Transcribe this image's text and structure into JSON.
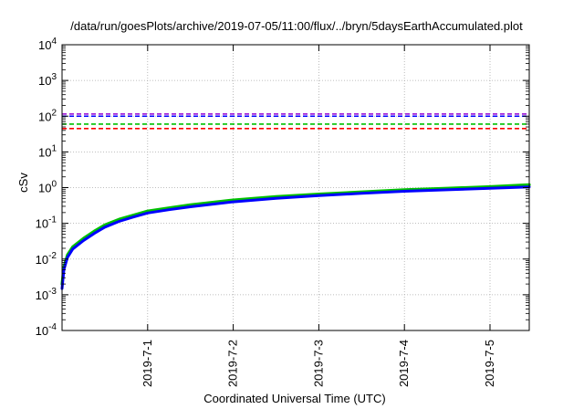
{
  "chart_data": {
    "type": "line",
    "title": "/data/run/goesPlots/archive/2019-07-05/11:00/flux/../bryn/5daysEarthAccumulated.plot",
    "xlabel": "Coordinated Universal Time (UTC)",
    "ylabel": "cSv",
    "y_scale": "log",
    "ylim": [
      0.0001,
      10000
    ],
    "xlim": [
      "2019-06-30T00:00",
      "2019-07-05T11:00"
    ],
    "grid": true,
    "x_ticks": [
      {
        "value": "2019-07-01",
        "label": "2019-7-1"
      },
      {
        "value": "2019-07-02",
        "label": "2019-7-2"
      },
      {
        "value": "2019-07-03",
        "label": "2019-7-3"
      },
      {
        "value": "2019-07-04",
        "label": "2019-7-4"
      },
      {
        "value": "2019-07-05",
        "label": "2019-7-5"
      }
    ],
    "y_ticks": [
      {
        "value": 0.0001,
        "base": "10",
        "exp": "-4"
      },
      {
        "value": 0.001,
        "base": "10",
        "exp": "-3"
      },
      {
        "value": 0.01,
        "base": "10",
        "exp": "-2"
      },
      {
        "value": 0.1,
        "base": "10",
        "exp": "-1"
      },
      {
        "value": 1,
        "base": "10",
        "exp": "0"
      },
      {
        "value": 10,
        "base": "10",
        "exp": "1"
      },
      {
        "value": 100,
        "base": "10",
        "exp": "2"
      },
      {
        "value": 1000,
        "base": "10",
        "exp": "3"
      },
      {
        "value": 10000,
        "base": "10",
        "exp": "4"
      }
    ],
    "thresholds": [
      {
        "value": 115,
        "color": "#9400d3"
      },
      {
        "value": 100,
        "color": "#0000ff"
      },
      {
        "value": 60,
        "color": "#00c000"
      },
      {
        "value": 45,
        "color": "#ff0000"
      }
    ],
    "series": [
      {
        "color": "#00c000",
        "x": [
          "2019-06-30T00:00",
          "2019-06-30T00:30",
          "2019-06-30T01:30",
          "2019-06-30T03:00",
          "2019-06-30T06:00",
          "2019-06-30T09:00",
          "2019-06-30T12:00",
          "2019-06-30T16:00",
          "2019-06-30T20:00",
          "2019-07-01T00:00",
          "2019-07-01T06:00",
          "2019-07-01T12:00",
          "2019-07-02T00:00",
          "2019-07-02T12:00",
          "2019-07-03T00:00",
          "2019-07-03T12:00",
          "2019-07-04T00:00",
          "2019-07-04T12:00",
          "2019-07-05T00:00",
          "2019-07-05T11:00"
        ],
        "y": [
          0.002,
          0.006,
          0.013,
          0.022,
          0.038,
          0.06,
          0.09,
          0.13,
          0.17,
          0.22,
          0.27,
          0.33,
          0.45,
          0.56,
          0.66,
          0.76,
          0.87,
          0.96,
          1.06,
          1.2
        ]
      },
      {
        "color": "#0000ff",
        "x": [
          "2019-06-30T00:00",
          "2019-06-30T00:30",
          "2019-06-30T01:30",
          "2019-06-30T03:00",
          "2019-06-30T06:00",
          "2019-06-30T09:00",
          "2019-06-30T12:00",
          "2019-06-30T16:00",
          "2019-06-30T20:00",
          "2019-07-01T00:00",
          "2019-07-01T06:00",
          "2019-07-01T12:00",
          "2019-07-02T00:00",
          "2019-07-02T12:00",
          "2019-07-03T00:00",
          "2019-07-03T12:00",
          "2019-07-04T00:00",
          "2019-07-04T12:00",
          "2019-07-05T00:00",
          "2019-07-05T11:00"
        ],
        "y": [
          0.0015,
          0.005,
          0.011,
          0.019,
          0.033,
          0.052,
          0.078,
          0.113,
          0.15,
          0.195,
          0.24,
          0.29,
          0.4,
          0.5,
          0.6,
          0.69,
          0.79,
          0.87,
          0.96,
          1.05
        ]
      }
    ]
  }
}
